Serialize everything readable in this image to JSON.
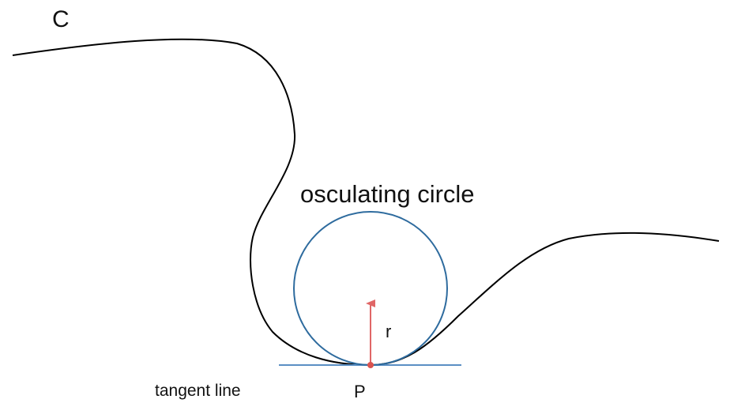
{
  "labels": {
    "curve": "C",
    "circle": "osculating circle",
    "radius": "r",
    "point": "P",
    "tangent": "tangent line"
  },
  "colors": {
    "curve": "#000000",
    "circle": "#2e6b9e",
    "tangent": "#5b8fc4",
    "radius_arrow": "#e06666",
    "point": "#d9534f",
    "text": "#111111"
  }
}
